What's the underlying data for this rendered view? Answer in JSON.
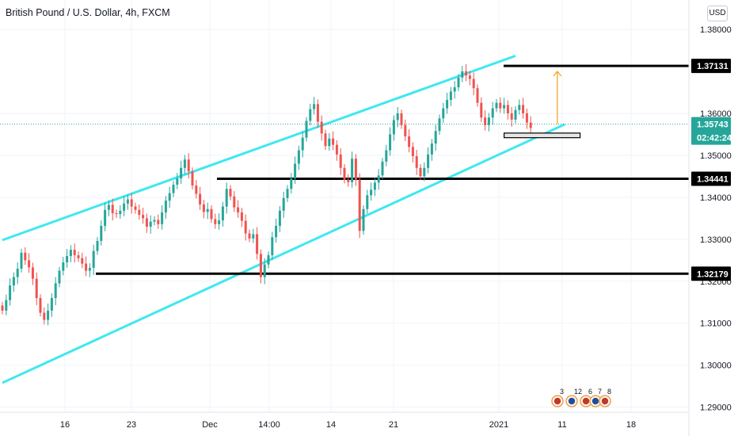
{
  "header": {
    "title": "British Pound / U.S. Dollar, 4h, FXCM",
    "currency_button": "USD"
  },
  "colors": {
    "up": "#26a69a",
    "down": "#ef5350",
    "channel": "#3ee8f1",
    "level": "#000000",
    "current": "#26a69a",
    "arrow": "#f5a623"
  },
  "chart_data": {
    "type": "candlestick",
    "symbol": "British Pound / U.S. Dollar",
    "interval": "4h",
    "source": "FXCM",
    "ylim": [
      1.2888,
      1.387
    ],
    "x_ticks": [
      "16",
      "23",
      "Dec",
      "14:00",
      "14",
      "21",
      "2021",
      "11",
      "18"
    ],
    "y_ticks": [
      "1.29000",
      "1.30000",
      "1.31000",
      "1.32000",
      "1.33000",
      "1.34000",
      "1.35000",
      "1.36000",
      "1.38000"
    ],
    "horizontal_levels": [
      {
        "price": "1.37131",
        "value": 1.37131
      },
      {
        "price": "1.34441",
        "value": 1.34441
      },
      {
        "price": "1.32179",
        "value": 1.32179
      }
    ],
    "current_price": {
      "price": "1.35743",
      "value": 1.35743,
      "countdown": "02:42:24"
    },
    "channel": {
      "upper": [
        [
          0,
          1.3298
        ],
        [
          135,
          1.3737
        ]
      ],
      "lower": [
        [
          0,
          1.2958
        ],
        [
          148,
          1.3574
        ]
      ]
    },
    "support_zone": [
      1.3542,
      1.3553
    ],
    "target_arrow": [
      1.3574,
      1.37
    ],
    "closes": [
      1.313,
      1.3155,
      1.319,
      1.321,
      1.323,
      1.3268,
      1.325,
      1.3233,
      1.3206,
      1.316,
      1.3125,
      1.3108,
      1.313,
      1.316,
      1.3195,
      1.3225,
      1.3245,
      1.326,
      1.3275,
      1.3262,
      1.3255,
      1.3242,
      1.3225,
      1.3232,
      1.3272,
      1.3296,
      1.3332,
      1.337,
      1.3382,
      1.3362,
      1.336,
      1.3368,
      1.3385,
      1.3395,
      1.3378,
      1.337,
      1.3358,
      1.335,
      1.333,
      1.3342,
      1.3346,
      1.3336,
      1.3364,
      1.3392,
      1.341,
      1.343,
      1.3445,
      1.347,
      1.349,
      1.3462,
      1.3428,
      1.3408,
      1.3383,
      1.3365,
      1.3372,
      1.3348,
      1.3336,
      1.3345,
      1.3378,
      1.342,
      1.3402,
      1.3376,
      1.3364,
      1.3344,
      1.3314,
      1.3302,
      1.3312,
      1.3265,
      1.321,
      1.324,
      1.3262,
      1.3305,
      1.3332,
      1.3368,
      1.3398,
      1.342,
      1.3445,
      1.348,
      1.3512,
      1.3542,
      1.3582,
      1.361,
      1.3622,
      1.358,
      1.3552,
      1.3522,
      1.354,
      1.3525,
      1.3502,
      1.347,
      1.3442,
      1.3436,
      1.3492,
      1.3442,
      1.332,
      1.3372,
      1.3405,
      1.3418,
      1.3435,
      1.3452,
      1.3485,
      1.3512,
      1.355,
      1.3584,
      1.36,
      1.3572,
      1.3545,
      1.352,
      1.3498,
      1.347,
      1.345,
      1.347,
      1.3502,
      1.3528,
      1.3558,
      1.3588,
      1.3612,
      1.3632,
      1.3652,
      1.3662,
      1.3685,
      1.37,
      1.369,
      1.3682,
      1.366,
      1.3625,
      1.359,
      1.3572,
      1.359,
      1.3612,
      1.3625,
      1.3612,
      1.362,
      1.36,
      1.3585,
      1.3608,
      1.362,
      1.36,
      1.3578,
      1.3565
    ]
  },
  "events": {
    "counts": [
      "3",
      "12",
      "6",
      "7",
      "8"
    ]
  }
}
